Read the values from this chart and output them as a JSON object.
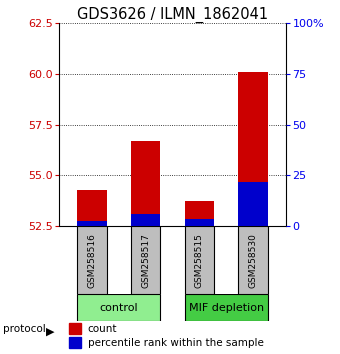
{
  "title": "GDS3626 / ILMN_1862041",
  "samples": [
    "GSM258516",
    "GSM258517",
    "GSM258515",
    "GSM258530"
  ],
  "groups": [
    {
      "label": "control",
      "indices": [
        0,
        1
      ],
      "color": "#90EE90"
    },
    {
      "label": "MIF depletion",
      "indices": [
        2,
        3
      ],
      "color": "#44CC44"
    }
  ],
  "baseline": 52.5,
  "red_values": [
    54.3,
    56.7,
    53.75,
    60.1
  ],
  "blue_values_pct": [
    2.5,
    6.0,
    3.5,
    22.0
  ],
  "ylim_left": [
    52.5,
    62.5
  ],
  "ylim_right": [
    0,
    100
  ],
  "yticks_left": [
    52.5,
    55.0,
    57.5,
    60.0,
    62.5
  ],
  "yticks_right": [
    0,
    25,
    50,
    75,
    100
  ],
  "ytick_labels_right": [
    "0",
    "25",
    "50",
    "75",
    "100%"
  ],
  "bar_width": 0.55,
  "red_color": "#CC0000",
  "blue_color": "#0000CC",
  "protocol_label": "protocol",
  "legend_items": [
    "count",
    "percentile rank within the sample"
  ],
  "title_fontsize": 10.5,
  "tick_fontsize": 8,
  "sample_fontsize": 6.5,
  "group_fontsize": 8,
  "legend_fontsize": 7.5
}
